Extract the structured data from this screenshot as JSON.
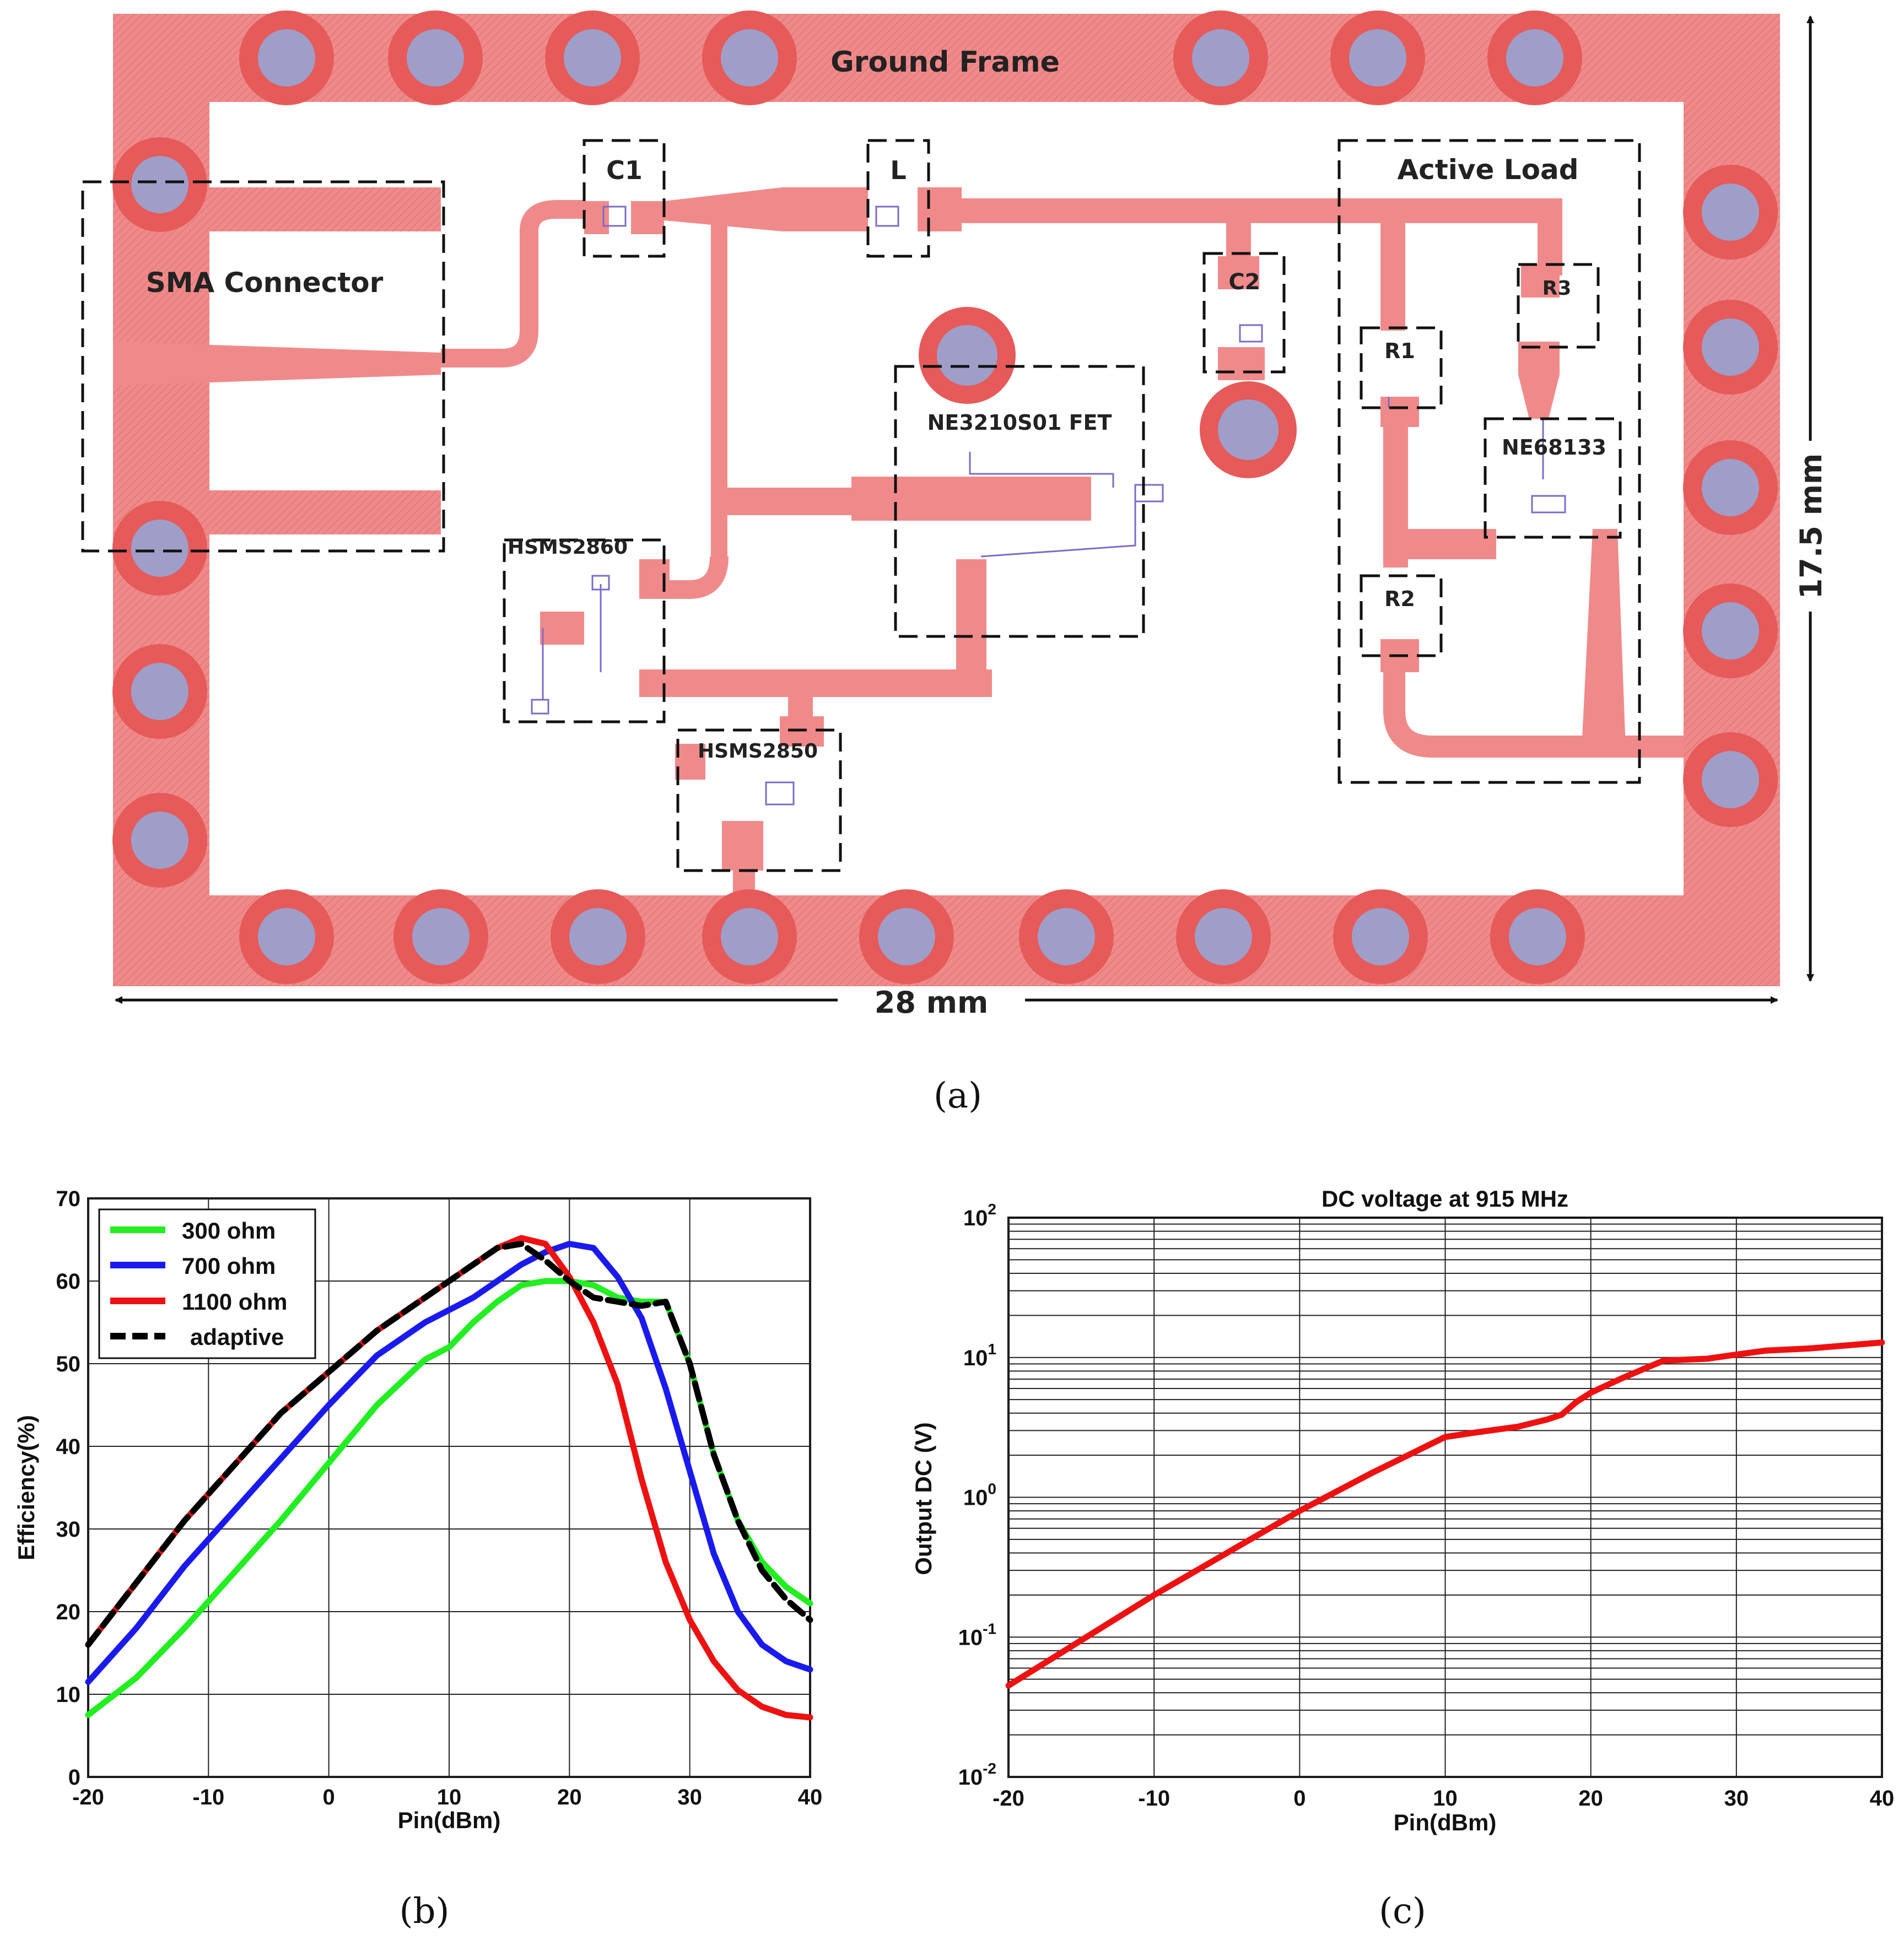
{
  "figure_a": {
    "caption": "(a)",
    "labels": {
      "ground_frame": "Ground Frame",
      "sma": "SMA Connector",
      "c1": "C1",
      "l": "L",
      "c2": "C2",
      "fet": "NE3210S01 FET",
      "active_load": "Active Load",
      "r1": "R1",
      "r2": "R2",
      "r3": "R3",
      "ne68133": "NE68133",
      "hsms2860": "HSMS2860",
      "hsms2850": "HSMS2850",
      "width": "28 mm",
      "height": "17.5 mm"
    },
    "colors": {
      "trace": "#f08a8a",
      "via_ring": "#e65a5a",
      "via_center": "#9e9ec8"
    }
  },
  "chart_data": [
    {
      "id": "b",
      "caption": "(b)",
      "type": "line",
      "title": "",
      "xlabel": "Pin(dBm)",
      "ylabel": "Efficiency(%)",
      "xlim": [
        -20,
        40
      ],
      "ylim": [
        0,
        70
      ],
      "xticks": [
        -20,
        -10,
        0,
        10,
        20,
        30,
        40
      ],
      "yticks": [
        0,
        10,
        20,
        30,
        40,
        50,
        60,
        70
      ],
      "grid": true,
      "legend_position": "top-left",
      "series": [
        {
          "name": "300 ohm",
          "color": "#22ee22",
          "dash": false,
          "x": [
            -20,
            -16,
            -12,
            -8,
            -4,
            0,
            4,
            8,
            10,
            12,
            14,
            16,
            18,
            20,
            22,
            24,
            26,
            28,
            30,
            32,
            34,
            36,
            38,
            40
          ],
          "y": [
            7.5,
            12,
            18,
            24.5,
            31,
            38,
            45,
            50.5,
            52,
            55,
            57.5,
            59.5,
            60,
            60,
            59.5,
            58,
            57.5,
            57.5,
            50,
            39,
            31,
            26,
            23,
            21
          ]
        },
        {
          "name": "700 ohm",
          "color": "#1a1aee",
          "dash": false,
          "x": [
            -20,
            -16,
            -12,
            -8,
            -4,
            0,
            4,
            8,
            12,
            16,
            18,
            20,
            22,
            24,
            26,
            28,
            30,
            32,
            34,
            36,
            38,
            40
          ],
          "y": [
            11.5,
            18,
            25.5,
            32,
            38.5,
            45,
            51,
            55,
            58,
            62,
            63.5,
            64.5,
            64,
            60.5,
            55.5,
            47,
            37,
            27,
            20,
            16,
            14,
            13
          ]
        },
        {
          "name": "1100 ohm",
          "color": "#ee1111",
          "dash": false,
          "x": [
            -20,
            -16,
            -12,
            -8,
            -4,
            0,
            4,
            8,
            12,
            14,
            16,
            18,
            20,
            22,
            24,
            26,
            28,
            30,
            32,
            34,
            36,
            38,
            40
          ],
          "y": [
            16,
            23.5,
            31,
            37.5,
            44,
            49,
            54,
            58,
            62,
            64,
            65.2,
            64.5,
            60.5,
            55,
            47.5,
            36,
            26,
            19,
            14,
            10.5,
            8.5,
            7.5,
            7.2
          ]
        },
        {
          "name": "adaptive",
          "color": "#000000",
          "dash": true,
          "x": [
            -20,
            -16,
            -12,
            -8,
            -4,
            0,
            4,
            8,
            12,
            14,
            16,
            18,
            20,
            22,
            24,
            26,
            28,
            30,
            32,
            34,
            36,
            38,
            40
          ],
          "y": [
            16,
            23.5,
            31,
            37.5,
            44,
            49,
            54,
            58,
            62,
            64,
            64.5,
            62.5,
            60,
            58,
            57.5,
            57,
            57.5,
            50,
            39,
            31,
            25,
            21.5,
            19
          ]
        }
      ]
    },
    {
      "id": "c",
      "caption": "(c)",
      "type": "line",
      "title": "DC voltage  at 915 MHz",
      "xlabel": "Pin(dBm)",
      "ylabel": "Output DC (V)",
      "xlim": [
        -20,
        40
      ],
      "ylim": [
        0.01,
        100
      ],
      "yscale": "log",
      "xticks": [
        -20,
        -10,
        0,
        10,
        20,
        30,
        40
      ],
      "yticks": [
        0.01,
        0.1,
        1,
        10,
        100
      ],
      "ytick_base": "10",
      "ytick_exponents": [
        "-2",
        "-1",
        "0",
        "1",
        "2"
      ],
      "grid": true,
      "series": [
        {
          "name": "Output DC",
          "color": "#ee1111",
          "dash": false,
          "x": [
            -20,
            -15,
            -10,
            -5,
            0,
            5,
            10,
            12,
            15,
            17,
            18,
            19,
            20,
            22,
            24,
            25,
            28,
            30,
            32,
            35,
            38,
            40
          ],
          "y": [
            0.045,
            0.095,
            0.2,
            0.4,
            0.8,
            1.5,
            2.7,
            2.9,
            3.2,
            3.6,
            3.9,
            4.8,
            5.6,
            7.0,
            8.6,
            9.5,
            9.8,
            10.5,
            11.2,
            11.6,
            12.3,
            12.8
          ]
        }
      ]
    }
  ]
}
